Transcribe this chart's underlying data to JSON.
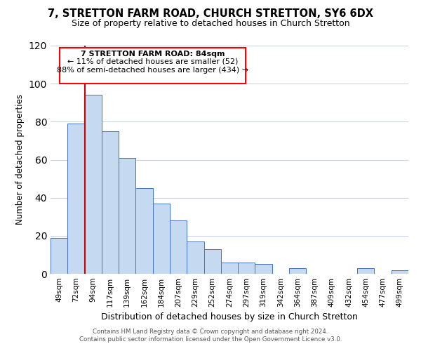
{
  "title": "7, STRETTON FARM ROAD, CHURCH STRETTON, SY6 6DX",
  "subtitle": "Size of property relative to detached houses in Church Stretton",
  "xlabel": "Distribution of detached houses by size in Church Stretton",
  "ylabel": "Number of detached properties",
  "footer_line1": "Contains HM Land Registry data © Crown copyright and database right 2024.",
  "footer_line2": "Contains public sector information licensed under the Open Government Licence v3.0.",
  "bar_labels": [
    "49sqm",
    "72sqm",
    "94sqm",
    "117sqm",
    "139sqm",
    "162sqm",
    "184sqm",
    "207sqm",
    "229sqm",
    "252sqm",
    "274sqm",
    "297sqm",
    "319sqm",
    "342sqm",
    "364sqm",
    "387sqm",
    "409sqm",
    "432sqm",
    "454sqm",
    "477sqm",
    "499sqm"
  ],
  "bar_values": [
    19,
    79,
    94,
    75,
    61,
    45,
    37,
    28,
    17,
    13,
    6,
    6,
    5,
    0,
    3,
    0,
    0,
    0,
    3,
    0,
    2
  ],
  "bar_color": "#c5d9f1",
  "bar_edge_color": "#4472c4",
  "ylim": [
    0,
    120
  ],
  "yticks": [
    0,
    20,
    40,
    60,
    80,
    100,
    120
  ],
  "red_line_x": 1.5,
  "red_line_color": "#cc0000",
  "annotation_text_line1": "7 STRETTON FARM ROAD: 84sqm",
  "annotation_text_line2": "← 11% of detached houses are smaller (52)",
  "annotation_text_line3": "88% of semi-detached houses are larger (434) →",
  "background_color": "#ffffff",
  "grid_color": "#c8d4e8"
}
